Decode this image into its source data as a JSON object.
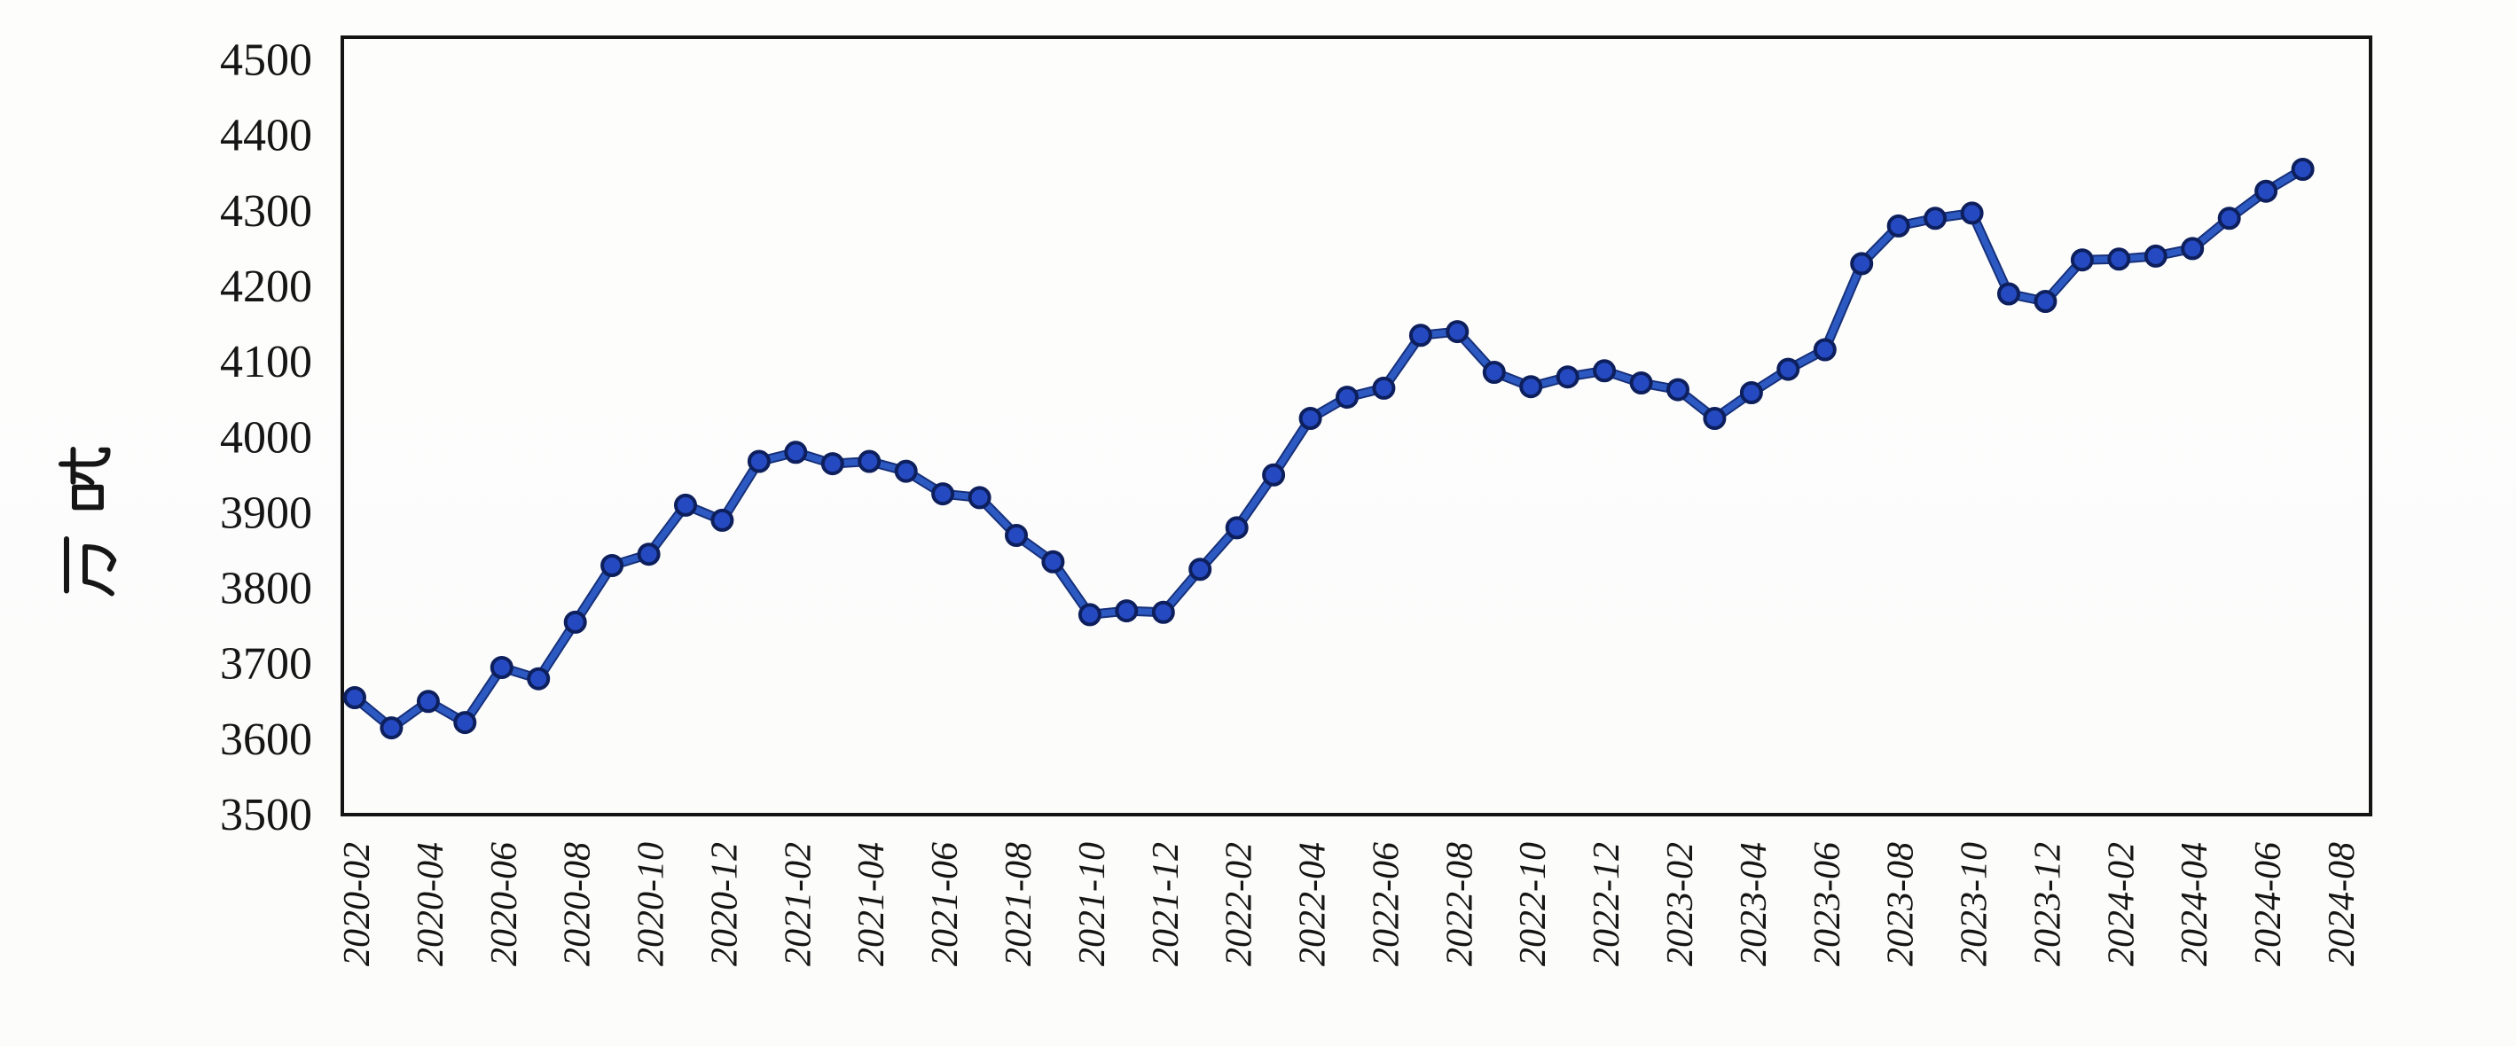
{
  "chart_data": {
    "type": "line",
    "title": "",
    "ylabel": "万吨",
    "xlabel": "",
    "ylim": [
      3500,
      4530
    ],
    "yticks": [
      3500,
      3600,
      3700,
      3800,
      3900,
      4000,
      4100,
      4200,
      4300,
      4400,
      4500
    ],
    "x_tick_every": 2,
    "grid": false,
    "legend": "none",
    "categories": [
      "2020-02",
      "2020-03",
      "2020-04",
      "2020-05",
      "2020-06",
      "2020-07",
      "2020-08",
      "2020-09",
      "2020-10",
      "2020-11",
      "2020-12",
      "2021-01",
      "2021-02",
      "2021-03",
      "2021-04",
      "2021-05",
      "2021-06",
      "2021-07",
      "2021-08",
      "2021-09",
      "2021-10",
      "2021-11",
      "2021-12",
      "2022-01",
      "2022-02",
      "2022-03",
      "2022-04",
      "2022-05",
      "2022-06",
      "2022-07",
      "2022-08",
      "2022-09",
      "2022-10",
      "2022-11",
      "2022-12",
      "2023-01",
      "2023-02",
      "2023-03",
      "2023-04",
      "2023-05",
      "2023-06",
      "2023-07",
      "2023-08",
      "2023-09",
      "2023-10",
      "2023-11",
      "2023-12",
      "2024-01",
      "2024-02",
      "2024-03",
      "2024-04",
      "2024-05",
      "2024-06",
      "2024-07",
      "2024-08"
    ],
    "values": [
      3655,
      3615,
      3650,
      3622,
      3695,
      3680,
      3755,
      3830,
      3845,
      3910,
      3890,
      3968,
      3980,
      3965,
      3968,
      3955,
      3925,
      3920,
      3870,
      3835,
      3765,
      3770,
      3768,
      3825,
      3880,
      3950,
      4025,
      4053,
      4065,
      4135,
      4140,
      4086,
      4067,
      4080,
      4088,
      4072,
      4063,
      4025,
      4059,
      4090,
      4116,
      4230,
      4280,
      4290,
      4297,
      4190,
      4180,
      4235,
      4236,
      4240,
      4250,
      4290,
      4326,
      4355,
      null
    ],
    "colors": {
      "line": "#2d5ac2",
      "line_edge": "#16307a",
      "marker_fill": "#2549c0",
      "marker_edge": "#0d1f5c",
      "axis": "#141414",
      "text": "#151515",
      "background": "#fdfdfc"
    }
  }
}
